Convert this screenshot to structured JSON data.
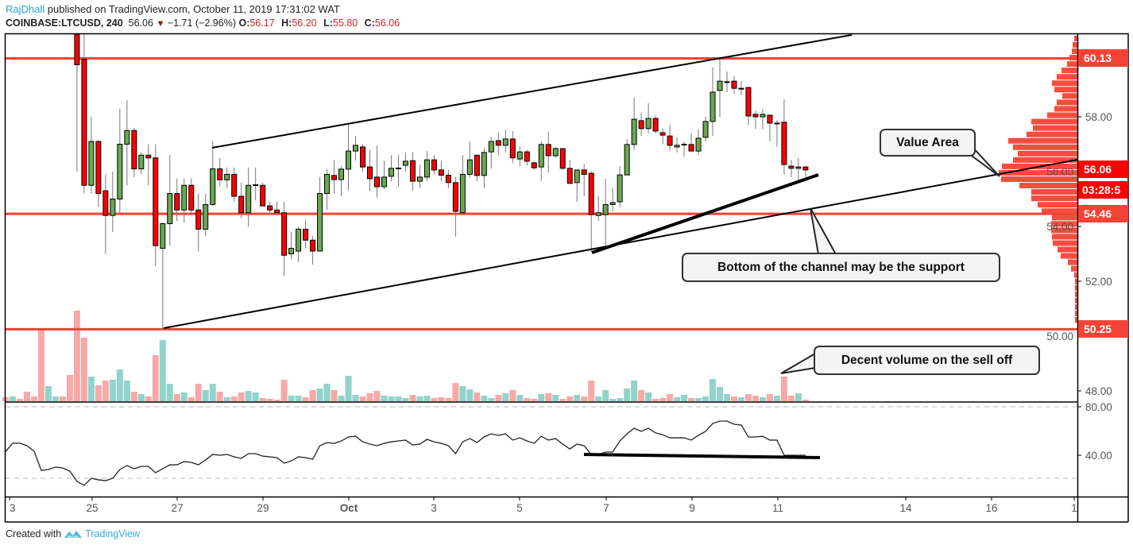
{
  "header": {
    "author": "RajDhall",
    "published_text": "published on TradingView.com, October 11, 2019 17:31:02 WAT",
    "symbol": "COINBASE:LTCUSD, 240",
    "last": "56.06",
    "change": "−1.71 (−2.96%)",
    "open_label": "O:",
    "open": "56.17",
    "high_label": "H:",
    "high": "56.20",
    "low_label": "L:",
    "low": "55.80",
    "close_label": "C:",
    "close": "56.06"
  },
  "footer": {
    "created_with": "Created with",
    "brand": "TradingView"
  },
  "annotations": {
    "value_area": "Value Area",
    "channel_support": "Bottom of the channel may be the support",
    "volume_note": "Decent volume on the sell off"
  },
  "price_badges": {
    "resistance": "60.13",
    "current": "56.06",
    "countdown": "03:28:5",
    "support": "54.46",
    "low": "50.25"
  },
  "colors": {
    "up": "#6aa84f",
    "down": "#ff0000",
    "level_line": "#f44336",
    "vol_up": "#92d3cc",
    "vol_down": "#f7a9a7",
    "profile": "#f44336",
    "author": "#2a9fd8"
  },
  "chart_data": {
    "type": "candlestick",
    "symbol": "COINBASE:LTCUSD",
    "interval": "240",
    "price_ticks": [
      "58.00",
      "56.00",
      "54.00",
      "52.00",
      "50.00",
      "48.00"
    ],
    "price_tick_values": [
      58,
      56,
      54,
      52,
      50,
      48
    ],
    "time_ticks": [
      "3",
      "25",
      "27",
      "29",
      "Oct",
      "3",
      "5",
      "7",
      "9",
      "11",
      "14",
      "16",
      "1"
    ],
    "horizontal_levels": [
      60.13,
      54.46,
      50.25
    ],
    "candles_ohlc": [
      [
        61.2,
        61.6,
        56.0,
        59.9
      ],
      [
        60.1,
        61.6,
        55.2,
        55.5
      ],
      [
        55.5,
        58.0,
        55.2,
        57.1
      ],
      [
        57.1,
        57.15,
        54.7,
        55.2
      ],
      [
        55.3,
        55.9,
        53.0,
        54.4
      ],
      [
        54.4,
        56.0,
        53.8,
        55.0
      ],
      [
        55.0,
        58.3,
        54.5,
        57.0
      ],
      [
        57.0,
        58.6,
        55.5,
        57.5
      ],
      [
        57.5,
        57.6,
        55.8,
        56.1
      ],
      [
        56.1,
        56.7,
        55.9,
        56.6
      ],
      [
        56.6,
        57.0,
        55.5,
        56.5
      ],
      [
        56.5,
        57.0,
        52.55,
        53.3
      ],
      [
        53.2,
        54.15,
        50.25,
        54.1
      ],
      [
        54.1,
        56.6,
        53.3,
        55.2
      ],
      [
        55.2,
        55.75,
        54.2,
        54.6
      ],
      [
        54.6,
        55.75,
        54.15,
        55.5
      ],
      [
        55.5,
        55.75,
        54.4,
        54.6
      ],
      [
        54.6,
        55.2,
        53.1,
        53.9
      ],
      [
        53.9,
        55.2,
        53.65,
        54.8
      ],
      [
        54.8,
        57.1,
        54.75,
        56.1
      ],
      [
        56.1,
        56.5,
        55.45,
        55.7
      ],
      [
        55.7,
        56.15,
        55.4,
        55.9
      ],
      [
        55.9,
        56.15,
        54.9,
        55.1
      ],
      [
        55.1,
        55.6,
        54.3,
        54.5
      ],
      [
        54.5,
        56.15,
        54.0,
        55.5
      ],
      [
        55.5,
        56.15,
        54.95,
        55.52
      ],
      [
        55.5,
        55.6,
        54.9,
        54.75
      ],
      [
        54.75,
        54.9,
        54.45,
        54.6
      ],
      [
        54.6,
        54.9,
        54.4,
        54.5
      ],
      [
        54.5,
        54.9,
        52.2,
        52.95
      ],
      [
        53.0,
        53.8,
        52.8,
        53.2
      ],
      [
        53.1,
        54.0,
        52.7,
        53.9
      ],
      [
        53.9,
        54.25,
        53.2,
        53.5
      ],
      [
        53.5,
        53.65,
        52.6,
        53.1
      ],
      [
        53.1,
        55.8,
        53.1,
        55.2
      ],
      [
        55.2,
        56.1,
        54.6,
        55.9
      ],
      [
        55.86,
        56.43,
        55.2,
        55.71
      ],
      [
        55.71,
        56.2,
        55.1,
        56.09
      ],
      [
        56.09,
        57.71,
        55.3,
        56.75
      ],
      [
        56.75,
        57.3,
        56.4,
        56.96
      ],
      [
        56.9,
        57.0,
        56.0,
        56.17
      ],
      [
        56.17,
        56.8,
        55.3,
        55.74
      ],
      [
        55.8,
        56.95,
        55.05,
        55.45
      ],
      [
        55.45,
        56.4,
        55.35,
        55.8
      ],
      [
        55.83,
        56.6,
        55.65,
        56.12
      ],
      [
        56.12,
        56.6,
        55.45,
        56.13
      ],
      [
        56.23,
        56.7,
        56.0,
        56.38
      ],
      [
        56.4,
        56.7,
        55.3,
        55.65
      ],
      [
        55.65,
        56.25,
        55.4,
        55.8
      ],
      [
        55.8,
        56.75,
        55.65,
        56.43
      ],
      [
        56.43,
        56.6,
        55.9,
        56.06
      ],
      [
        56.06,
        56.4,
        55.65,
        55.87
      ],
      [
        55.87,
        56.06,
        55.4,
        55.6
      ],
      [
        55.6,
        55.8,
        53.62,
        54.55
      ],
      [
        54.5,
        56.6,
        54.55,
        55.9
      ],
      [
        55.9,
        57.1,
        55.78,
        56.43
      ],
      [
        56.6,
        56.6,
        55.65,
        55.86
      ],
      [
        55.86,
        56.85,
        55.4,
        56.7
      ],
      [
        56.72,
        57.26,
        56.1,
        57.1
      ],
      [
        57.13,
        57.43,
        56.6,
        56.96
      ],
      [
        56.96,
        57.52,
        56.7,
        57.19
      ],
      [
        57.19,
        57.48,
        56.3,
        56.5
      ],
      [
        56.46,
        56.92,
        56.2,
        56.72
      ],
      [
        56.72,
        56.8,
        56.22,
        56.38
      ],
      [
        56.32,
        56.38,
        56.06,
        56.14
      ],
      [
        56.17,
        57.1,
        55.66,
        56.99
      ],
      [
        56.99,
        57.46,
        55.96,
        56.58
      ],
      [
        56.58,
        56.9,
        56.5,
        56.84
      ],
      [
        56.84,
        56.85,
        56.06,
        56.12
      ],
      [
        56.12,
        56.43,
        55.6,
        55.57
      ],
      [
        55.6,
        56.06,
        54.9,
        56.06
      ],
      [
        56.06,
        56.28,
        55.1,
        55.9
      ],
      [
        55.94,
        56.0,
        53.07,
        54.43
      ],
      [
        54.4,
        55.1,
        54.2,
        54.5
      ],
      [
        54.43,
        55.74,
        53.25,
        54.8
      ],
      [
        54.8,
        55.4,
        54.55,
        54.87
      ],
      [
        54.9,
        56.2,
        54.7,
        55.88
      ],
      [
        55.88,
        57.19,
        55.88,
        56.99
      ],
      [
        56.99,
        58.7,
        56.8,
        57.91
      ],
      [
        57.86,
        58.15,
        57.3,
        57.57
      ],
      [
        57.57,
        58.5,
        57.4,
        57.94
      ],
      [
        57.94,
        58.05,
        57.39,
        57.48
      ],
      [
        57.42,
        57.57,
        57.0,
        57.33
      ],
      [
        57.3,
        57.71,
        56.77,
        56.96
      ],
      [
        56.9,
        57.25,
        56.7,
        56.96
      ],
      [
        57.0,
        57.1,
        56.55,
        57.0
      ],
      [
        56.99,
        57.4,
        56.75,
        56.75
      ],
      [
        56.75,
        57.55,
        56.6,
        57.22
      ],
      [
        57.25,
        58.0,
        57.1,
        57.83
      ],
      [
        57.83,
        59.8,
        57.3,
        58.9
      ],
      [
        58.96,
        60.1,
        58.0,
        59.3
      ],
      [
        59.28,
        59.65,
        58.9,
        59.28
      ],
      [
        59.3,
        59.48,
        58.84,
        59.04
      ],
      [
        59.04,
        59.3,
        58.8,
        59.04
      ],
      [
        59.07,
        59.07,
        57.7,
        58.03
      ],
      [
        58.09,
        58.23,
        57.55,
        58.0
      ],
      [
        58.0,
        58.29,
        57.55,
        58.09
      ],
      [
        58.06,
        58.06,
        57.1,
        57.77
      ],
      [
        57.77,
        57.88,
        56.9,
        57.77
      ],
      [
        57.8,
        58.64,
        55.9,
        56.26
      ],
      [
        56.2,
        56.43,
        55.8,
        56.12
      ],
      [
        56.12,
        56.49,
        55.7,
        56.17
      ],
      [
        56.17,
        56.2,
        55.8,
        56.06
      ]
    ],
    "volume_relative": [
      5,
      6,
      3,
      12,
      6,
      89,
      19,
      6,
      6,
      33,
      114,
      80,
      31,
      20,
      26,
      27,
      40,
      26,
      12,
      9,
      6,
      58,
      77,
      22,
      9,
      11,
      5,
      22,
      14,
      22,
      12,
      5,
      6,
      11,
      13,
      11,
      4,
      3,
      2,
      27,
      7,
      7,
      5,
      14,
      16,
      22,
      14,
      7,
      32,
      8,
      6,
      10,
      13,
      7,
      6,
      6,
      4,
      8,
      6,
      7,
      4,
      5,
      4,
      23,
      19,
      15,
      11,
      7,
      4,
      8,
      10,
      14,
      8,
      4,
      3,
      9,
      10,
      8,
      3,
      6,
      8,
      6,
      26,
      6,
      14,
      3,
      4,
      16,
      26,
      14,
      11,
      3,
      4,
      9,
      5,
      8,
      4,
      4,
      6,
      28,
      18,
      9,
      6,
      5,
      9,
      7,
      5,
      9,
      7,
      31,
      7,
      10,
      2
    ],
    "volume_direction_before_candles": [
      "down",
      "up",
      "down",
      "down",
      "down",
      "down",
      "up",
      "up",
      "down",
      "down"
    ],
    "rsi_ticks": [
      "80.00",
      "40.00"
    ],
    "rsi_tick_values": [
      80,
      40
    ],
    "rsi_bands": [
      80,
      21
    ],
    "rsi": [
      43.1,
      50.0,
      50.0,
      47.9,
      43.3,
      27.5,
      28.2,
      30.2,
      29.5,
      26.9,
      18.4,
      15.1,
      21.0,
      19.7,
      19.0,
      21.0,
      28.2,
      31.5,
      28.9,
      30.8,
      30.8,
      25.6,
      28.9,
      32.1,
      32.1,
      34.8,
      34.1,
      32.1,
      36.1,
      40.7,
      40.0,
      40.7,
      38.7,
      37.4,
      41.3,
      41.3,
      39.3,
      38.7,
      38.0,
      33.4,
      35.4,
      38.7,
      38.0,
      36.7,
      47.9,
      50.5,
      49.8,
      51.8,
      55.1,
      55.7,
      51.1,
      49.2,
      47.9,
      49.8,
      51.1,
      51.8,
      52.5,
      48.5,
      49.2,
      53.1,
      51.1,
      49.8,
      47.9,
      41.3,
      51.1,
      53.8,
      50.5,
      55.1,
      57.7,
      56.4,
      57.7,
      52.5,
      54.4,
      51.8,
      49.8,
      55.7,
      52.5,
      53.8,
      49.2,
      45.2,
      49.2,
      47.9,
      40.7,
      40.7,
      42.6,
      42.6,
      51.8,
      57.7,
      62.3,
      59.7,
      62.3,
      58.4,
      57.0,
      54.4,
      54.4,
      54.4,
      52.5,
      56.4,
      59.7,
      66.2,
      68.2,
      68.2,
      65.6,
      64.9,
      55.1,
      55.1,
      55.7,
      52.5,
      52.5,
      40.0,
      40.0,
      40.0,
      40.0
    ],
    "volume_profile_top_to_bottom": [
      4,
      6,
      7,
      10,
      13,
      20,
      26,
      32,
      29,
      19,
      26,
      29,
      38,
      58,
      56,
      64,
      87,
      81,
      75,
      81,
      95,
      99,
      96,
      73,
      58,
      58,
      50,
      45,
      32,
      33,
      33,
      32,
      31,
      25,
      21,
      12,
      8,
      4,
      3,
      3,
      3,
      3,
      3,
      3,
      3
    ],
    "volume_profile_price_range": [
      50.46,
      60.96
    ]
  }
}
